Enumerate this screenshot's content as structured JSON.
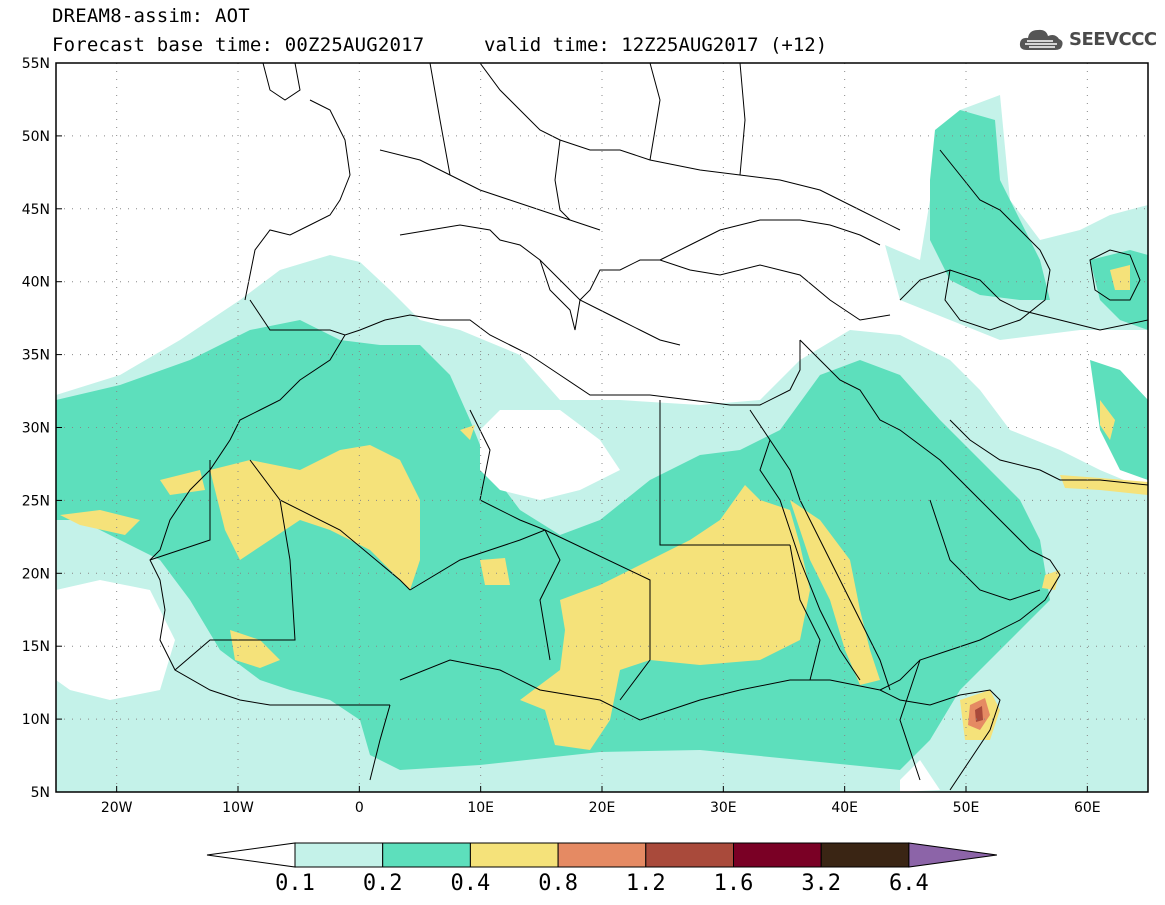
{
  "header": {
    "title": "DREAM8-assim: AOT",
    "base_time": "Forecast base time: 00Z25AUG2017",
    "valid_time": "valid time: 12Z25AUG2017 (+12)"
  },
  "logo": {
    "text": "SEEVCCC",
    "icon": "cloud-icon"
  },
  "axes": {
    "lat_ticks": [
      "55N",
      "50N",
      "45N",
      "40N",
      "35N",
      "30N",
      "25N",
      "20N",
      "15N",
      "10N",
      "5N"
    ],
    "lat_values": [
      55,
      50,
      45,
      40,
      35,
      30,
      25,
      20,
      15,
      10,
      5
    ],
    "lon_ticks": [
      "20W",
      "10W",
      "0",
      "10E",
      "20E",
      "30E",
      "40E",
      "50E",
      "60E"
    ],
    "lon_values": [
      -20,
      -10,
      0,
      10,
      20,
      30,
      40,
      50,
      60
    ],
    "lon_range": [
      -25,
      65
    ],
    "lat_range": [
      5,
      55
    ],
    "grid": "dotted"
  },
  "colorbar": {
    "labels": [
      "0.1",
      "0.2",
      "0.4",
      "0.8",
      "1.2",
      "1.6",
      "3.2",
      "6.4"
    ],
    "colors": [
      "#ffffff",
      "#c4f2e9",
      "#5ddfbc",
      "#f5e27a",
      "#e58a63",
      "#a94a3b",
      "#7a0025",
      "#3a2514",
      "#8c64a8"
    ]
  }
}
